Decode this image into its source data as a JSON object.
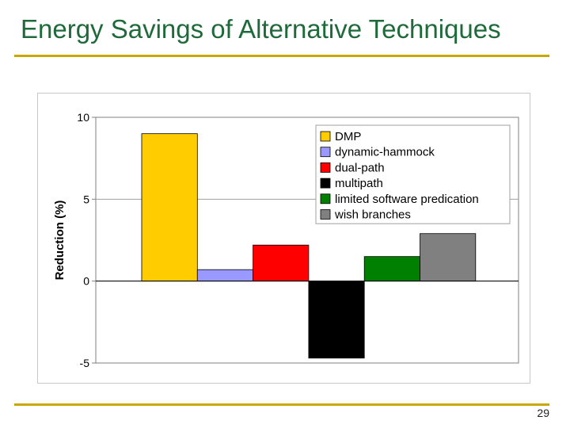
{
  "slide": {
    "title": "Energy Savings of Alternative Techniques",
    "page_number": "29"
  },
  "colors": {
    "title": "#1f6a3a",
    "rule": "#c8a800"
  },
  "chart_data": {
    "type": "bar",
    "title": "",
    "xlabel": "",
    "ylabel": "Reduction (%)",
    "ylim": [
      -5,
      10
    ],
    "yticks": [
      10,
      5,
      0,
      -5
    ],
    "ytick_labels": [
      "10",
      "5",
      "0",
      "-5"
    ],
    "grid": true,
    "legend_position": "top-right",
    "categories": [
      ""
    ],
    "series": [
      {
        "name": "DMP",
        "values": [
          9.0
        ],
        "color": "#ffcc00"
      },
      {
        "name": "dynamic-hammock",
        "values": [
          0.7
        ],
        "color": "#9999ff"
      },
      {
        "name": "dual-path",
        "values": [
          2.2
        ],
        "color": "#ff0000"
      },
      {
        "name": "multipath",
        "values": [
          -4.7
        ],
        "color": "#000000"
      },
      {
        "name": "limited software predication",
        "values": [
          1.5
        ],
        "color": "#008000"
      },
      {
        "name": "wish branches",
        "values": [
          2.9
        ],
        "color": "#808080"
      }
    ]
  }
}
